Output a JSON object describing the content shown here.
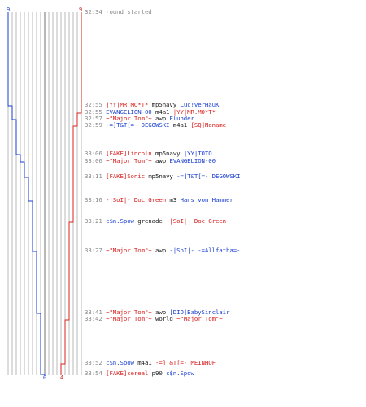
{
  "colors": {
    "blue_team": "#1a3ed0",
    "red_team": "#d8201e",
    "time": "#888888",
    "text": "#222222",
    "grid": "#b8b8b8"
  },
  "score": {
    "blue_start": "9",
    "red_start": "9",
    "blue_end": "0",
    "red_end": "4"
  },
  "events": [
    {
      "time": "32:34",
      "parts": [
        {
          "text": "round started",
          "cls": "gray"
        }
      ]
    },
    {
      "time": "32:55",
      "parts": [
        {
          "text": "|YY|MR.MO*T*",
          "cls": "red"
        },
        {
          "text": " mp5navy ",
          "cls": "dark"
        },
        {
          "text": "Luc!verHauK",
          "cls": "blue"
        }
      ]
    },
    {
      "time": "32:55",
      "parts": [
        {
          "text": "EVANGELION-00",
          "cls": "blue"
        },
        {
          "text": " m4a1 ",
          "cls": "dark"
        },
        {
          "text": "|YY|MR.MO*T*",
          "cls": "red"
        }
      ]
    },
    {
      "time": "32:57",
      "parts": [
        {
          "text": "~\"Major Tom\"~",
          "cls": "red"
        },
        {
          "text": " awp ",
          "cls": "dark"
        },
        {
          "text": "Flunder",
          "cls": "blue"
        }
      ]
    },
    {
      "time": "32:59",
      "parts": [
        {
          "text": "-=]T&T[=- DEGOWSKI",
          "cls": "blue"
        },
        {
          "text": " m4a1 ",
          "cls": "dark"
        },
        {
          "text": "[SQ]Noname",
          "cls": "red"
        }
      ]
    },
    {
      "time": "33:06",
      "parts": [
        {
          "text": "[FAKE]Lincoln",
          "cls": "red"
        },
        {
          "text": " mp5navy ",
          "cls": "dark"
        },
        {
          "text": "|YY|TOTO",
          "cls": "blue"
        }
      ]
    },
    {
      "time": "33:06",
      "parts": [
        {
          "text": "~\"Major Tom\"~",
          "cls": "red"
        },
        {
          "text": " awp ",
          "cls": "dark"
        },
        {
          "text": "EVANGELION-00",
          "cls": "blue"
        }
      ]
    },
    {
      "time": "33:11",
      "parts": [
        {
          "text": "[FAKE]Sonic",
          "cls": "red"
        },
        {
          "text": " mp5navy ",
          "cls": "dark"
        },
        {
          "text": "-=]T&T[=- DEGOWSKI",
          "cls": "blue"
        }
      ]
    },
    {
      "time": "33:16",
      "parts": [
        {
          "text": "-|SoI|- Doc Green",
          "cls": "red"
        },
        {
          "text": " m3 ",
          "cls": "dark"
        },
        {
          "text": "Hans von Hammer",
          "cls": "blue"
        }
      ]
    },
    {
      "time": "33:21",
      "parts": [
        {
          "text": "c$n.Spow",
          "cls": "blue"
        },
        {
          "text": " grenade ",
          "cls": "dark"
        },
        {
          "text": "-|SoI|- Doc Green",
          "cls": "red"
        }
      ]
    },
    {
      "time": "33:27",
      "parts": [
        {
          "text": "~\"Major Tom\"~",
          "cls": "red"
        },
        {
          "text": " awp ",
          "cls": "dark"
        },
        {
          "text": "-|SoI|- -=Allfatha=-",
          "cls": "blue"
        }
      ]
    },
    {
      "time": "33:41",
      "parts": [
        {
          "text": "~\"Major Tom\"~",
          "cls": "red"
        },
        {
          "text": " awp ",
          "cls": "dark"
        },
        {
          "text": "[DIO]BabySinclair",
          "cls": "blue"
        }
      ]
    },
    {
      "time": "33:42",
      "parts": [
        {
          "text": "~\"Major Tom\"~",
          "cls": "red"
        },
        {
          "text": " world ",
          "cls": "dark"
        },
        {
          "text": "~\"Major Tom\"~",
          "cls": "red"
        }
      ]
    },
    {
      "time": "33:52",
      "parts": [
        {
          "text": "c$n.Spow",
          "cls": "blue"
        },
        {
          "text": " m4a1 ",
          "cls": "dark"
        },
        {
          "text": "-=]T&T[=- MEINHOF",
          "cls": "red"
        }
      ]
    },
    {
      "time": "33:54",
      "parts": [
        {
          "text": "[FAKE]cereal",
          "cls": "red"
        },
        {
          "text": " p90 ",
          "cls": "dark"
        },
        {
          "text": "c$n.Spow",
          "cls": "blue"
        }
      ]
    }
  ]
}
